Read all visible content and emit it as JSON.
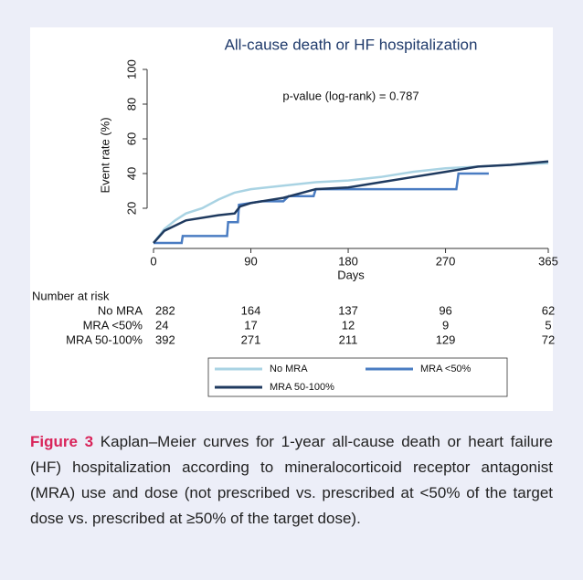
{
  "chart_data": {
    "type": "line",
    "title": "All-cause death or HF hospitalization",
    "annotation": "p-value (log-rank) = 0.787",
    "x_label": "Days",
    "y_label": "Event rate (%)",
    "xlim": [
      0,
      365
    ],
    "ylim": [
      0,
      100
    ],
    "xticks": [
      0,
      90,
      180,
      270,
      365
    ],
    "yticks": [
      20,
      40,
      60,
      80,
      100
    ],
    "series": [
      {
        "name": "No MRA",
        "color": "#a9d3e3",
        "x": [
          0,
          10,
          20,
          30,
          45,
          60,
          75,
          90,
          120,
          150,
          180,
          210,
          240,
          270,
          300,
          330,
          365
        ],
        "values": [
          0,
          8,
          13,
          17,
          20,
          25,
          29,
          31,
          33,
          35,
          36,
          38,
          41,
          43,
          44,
          45,
          46
        ]
      },
      {
        "name": "MRA <50%",
        "color": "#4a7cc2",
        "x": [
          0,
          26,
          27,
          68,
          69,
          78,
          79,
          100,
          120,
          125,
          148,
          150,
          280,
          282,
          310
        ],
        "values": [
          0,
          0,
          4,
          4,
          12,
          12,
          22,
          24,
          24,
          27,
          27,
          31,
          31,
          40,
          40
        ]
      },
      {
        "name": "MRA 50-100%",
        "color": "#1f3a5f",
        "x": [
          0,
          10,
          30,
          60,
          75,
          80,
          90,
          120,
          150,
          180,
          210,
          240,
          270,
          300,
          330,
          365
        ],
        "values": [
          0,
          7,
          13,
          16,
          17,
          21,
          23,
          26,
          31,
          32,
          35,
          38,
          41,
          44,
          45,
          47
        ]
      }
    ],
    "risk_table": {
      "title": "Number at risk",
      "rows": [
        {
          "label": "No MRA",
          "values": [
            282,
            164,
            137,
            96,
            62
          ]
        },
        {
          "label": "MRA <50%",
          "values": [
            24,
            17,
            12,
            9,
            5
          ]
        },
        {
          "label": "MRA 50-100%",
          "values": [
            392,
            271,
            211,
            129,
            72
          ]
        }
      ]
    }
  },
  "caption": {
    "label": "Figure 3",
    "text": "Kaplan–Meier curves for 1-year all-cause death or heart failure (HF) hospitalization according to mineralocorticoid receptor antagonist (MRA) use and dose (not prescribed vs. prescribed at <50% of the target dose vs. prescribed at ≥50% of the target dose)."
  }
}
